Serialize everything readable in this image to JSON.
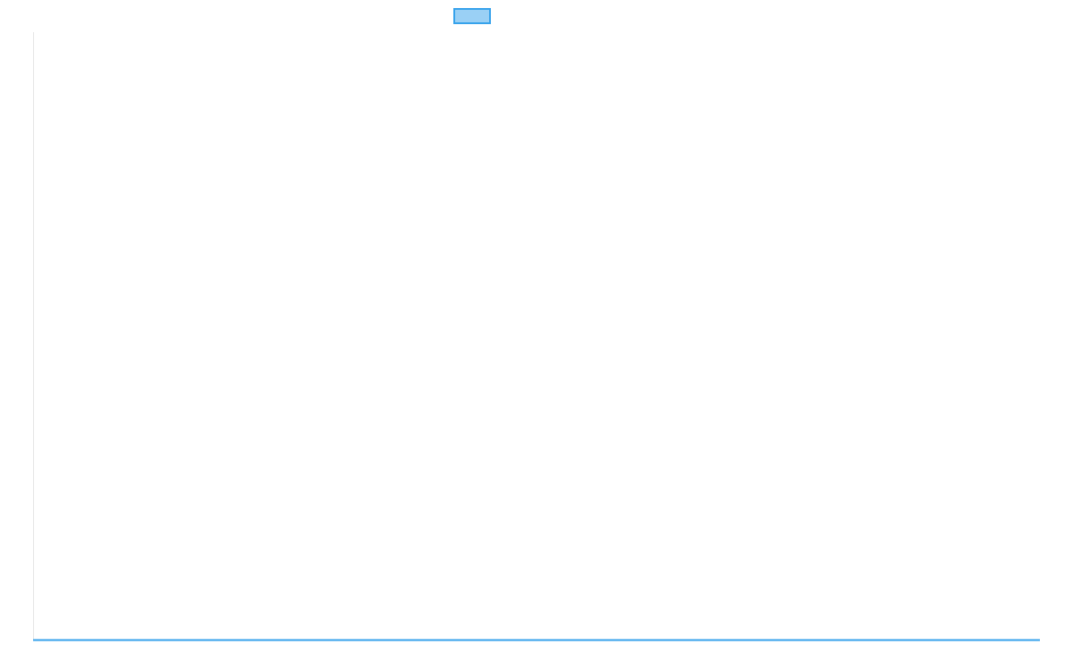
{
  "chart_data": {
    "type": "line",
    "title": "",
    "xlabel": "",
    "ylabel": "",
    "legend": "top",
    "grid": false,
    "series": [
      {
        "name": "",
        "color": "#36a2eb",
        "fill": "#9ad0f5",
        "values": []
      }
    ]
  }
}
